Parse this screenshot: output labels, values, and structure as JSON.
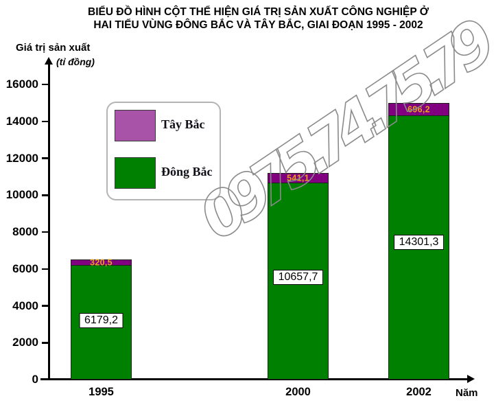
{
  "title": {
    "line1": "BIỂU ĐỒ HÌNH CỘT THỂ HIỆN GIÁ TRỊ SẢN XUẤT CÔNG NGHIỆP Ở",
    "line2": "HAI TIỂU VÙNG ĐÔNG BẮC VÀ TÂY BẮC, GIAI ĐOẠN 1995 - 2002"
  },
  "y_axis": {
    "label": "Giá trị sản xuất",
    "unit": "(tỉ đồng)"
  },
  "x_axis": {
    "label": "Năm"
  },
  "legend": {
    "items": [
      {
        "label": "Tây Bắc",
        "color": "#a852a8"
      },
      {
        "label": "Đông Bắc",
        "color": "#008000"
      }
    ]
  },
  "watermark": "0975.74.75.79",
  "colors": {
    "dong_bac_bar": "#008000",
    "tay_bac_bar": "#800080",
    "tay_bac_value_text": "#e8a41a",
    "watermark_stroke": "#8a8a8a"
  },
  "chart_data": {
    "type": "bar",
    "stacked": true,
    "title": "BIỂU ĐỒ HÌNH CỘT THỂ HIỆN GIÁ TRỊ SẢN XUẤT CÔNG NGHIỆP Ở HAI TIỂU VÙNG ĐÔNG BẮC VÀ TÂY BẮC, GIAI ĐOẠN 1995 - 2002",
    "xlabel": "Năm",
    "ylabel": "Giá trị sản xuất (tỉ đồng)",
    "categories": [
      "1995",
      "2000",
      "2002"
    ],
    "series": [
      {
        "name": "Đông Bắc",
        "color": "#008000",
        "values": [
          6179.2,
          10657.7,
          14301.3
        ],
        "labels": [
          "6179,2",
          "10657,7",
          "14301,3"
        ]
      },
      {
        "name": "Tây Bắc",
        "color": "#800080",
        "values": [
          320.5,
          541.1,
          696.2
        ],
        "labels": [
          "320,5",
          "541,1",
          "696,2"
        ]
      }
    ],
    "ylim": [
      0,
      16000
    ],
    "yticks": [
      0,
      2000,
      4000,
      6000,
      8000,
      10000,
      12000,
      14000,
      16000
    ],
    "grid": false,
    "legend_position": "upper-left-inside"
  }
}
